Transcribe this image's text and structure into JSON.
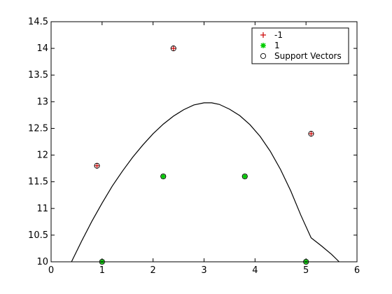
{
  "chart_data": {
    "type": "scatter",
    "title": "",
    "xlabel": "",
    "ylabel": "",
    "xlim": [
      0,
      6
    ],
    "ylim": [
      10,
      14.5
    ],
    "xticks": [
      "0",
      "1",
      "2",
      "3",
      "4",
      "5",
      "6"
    ],
    "yticks": [
      "10",
      "10.5",
      "11",
      "11.5",
      "12",
      "12.5",
      "13",
      "13.5",
      "14",
      "14.5"
    ],
    "grid": false,
    "legend_position": "top-right",
    "series": [
      {
        "name": "-1",
        "marker": "plus",
        "color": "#cc0000",
        "points": [
          [
            0.9,
            11.8
          ],
          [
            2.4,
            14.0
          ],
          [
            5.1,
            12.4
          ]
        ]
      },
      {
        "name": "1",
        "marker": "asterisk",
        "color": "#00cc00",
        "points": [
          [
            1.0,
            10.0
          ],
          [
            2.2,
            11.6
          ],
          [
            3.8,
            11.6
          ],
          [
            5.0,
            10.0
          ]
        ]
      },
      {
        "name": "Support Vectors",
        "marker": "circle",
        "color": "#000000",
        "points": [
          [
            0.9,
            11.8
          ],
          [
            2.4,
            14.0
          ],
          [
            5.1,
            12.4
          ],
          [
            1.0,
            10.0
          ],
          [
            2.2,
            11.6
          ],
          [
            3.8,
            11.6
          ],
          [
            5.0,
            10.0
          ]
        ]
      }
    ],
    "boundary_curve": {
      "color": "#000000",
      "points": [
        [
          0.4,
          10.0
        ],
        [
          0.6,
          10.39
        ],
        [
          0.8,
          10.76
        ],
        [
          1.0,
          11.1
        ],
        [
          1.2,
          11.42
        ],
        [
          1.4,
          11.7
        ],
        [
          1.6,
          11.96
        ],
        [
          1.8,
          12.19
        ],
        [
          2.0,
          12.4
        ],
        [
          2.2,
          12.58
        ],
        [
          2.4,
          12.73
        ],
        [
          2.6,
          12.85
        ],
        [
          2.8,
          12.94
        ],
        [
          3.0,
          12.98
        ],
        [
          3.15,
          12.98
        ],
        [
          3.3,
          12.95
        ],
        [
          3.5,
          12.86
        ],
        [
          3.7,
          12.74
        ],
        [
          3.9,
          12.57
        ],
        [
          4.1,
          12.35
        ],
        [
          4.3,
          12.07
        ],
        [
          4.5,
          11.73
        ],
        [
          4.7,
          11.33
        ],
        [
          4.9,
          10.87
        ],
        [
          5.1,
          10.45
        ],
        [
          5.3,
          10.3
        ],
        [
          5.5,
          10.14
        ],
        [
          5.65,
          10.0
        ]
      ]
    }
  }
}
